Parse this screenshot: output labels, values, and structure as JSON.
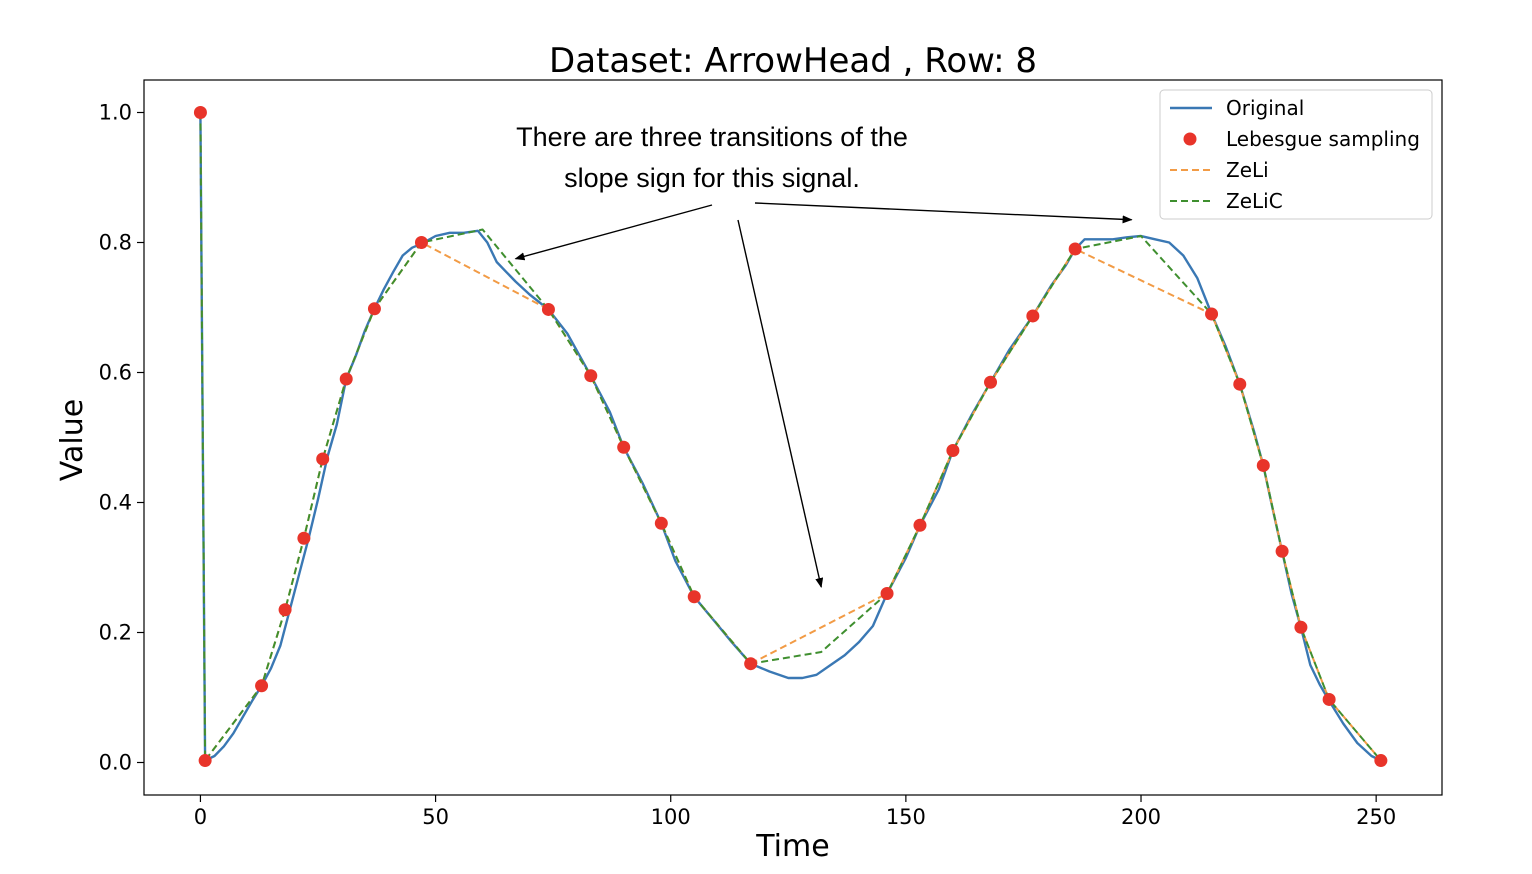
{
  "chart_data": {
    "type": "line",
    "title": "Dataset: ArrowHead , Row: 8",
    "xlabel": "Time",
    "ylabel": "Value",
    "xlim": [
      -12,
      264
    ],
    "ylim": [
      -0.05,
      1.05
    ],
    "xticks": [
      0,
      50,
      100,
      150,
      200,
      250
    ],
    "xtick_labels": [
      "0",
      "50",
      "100",
      "150",
      "200",
      "250"
    ],
    "yticks": [
      0.0,
      0.2,
      0.4,
      0.6,
      0.8,
      1.0
    ],
    "ytick_labels": [
      "0.0",
      "0.2",
      "0.4",
      "0.6",
      "0.8",
      "1.0"
    ],
    "grid": false,
    "legend_position": "top-right",
    "colors": {
      "original": "#3a78b4",
      "lebesgue": "#e8342a",
      "zeli": "#f29b45",
      "zelic": "#3f8f2f"
    },
    "series": [
      {
        "name": "Original",
        "style": "solid",
        "x": [
          0,
          1,
          3,
          5,
          7,
          9,
          11,
          13,
          15,
          17,
          19,
          21,
          23,
          25,
          27,
          29,
          31,
          33,
          35,
          37,
          39,
          41,
          43,
          45,
          47,
          50,
          53,
          56,
          59,
          61,
          63,
          65,
          67,
          70,
          74,
          78,
          83,
          87,
          90,
          94,
          98,
          101,
          105,
          109,
          113,
          117,
          121,
          125,
          128,
          131,
          134,
          137,
          140,
          143,
          146,
          150,
          153,
          157,
          160,
          164,
          168,
          172,
          177,
          181,
          184,
          186,
          188,
          191,
          194,
          197,
          200,
          203,
          206,
          209,
          212,
          215,
          218,
          221,
          224,
          226,
          228,
          230,
          232,
          234,
          236,
          238,
          240,
          243,
          246,
          249,
          251
        ],
        "y": [
          1.0,
          0.003,
          0.01,
          0.025,
          0.045,
          0.07,
          0.095,
          0.118,
          0.145,
          0.18,
          0.235,
          0.29,
          0.345,
          0.405,
          0.47,
          0.52,
          0.59,
          0.625,
          0.665,
          0.698,
          0.728,
          0.755,
          0.78,
          0.792,
          0.798,
          0.81,
          0.815,
          0.815,
          0.818,
          0.8,
          0.77,
          0.755,
          0.74,
          0.72,
          0.697,
          0.66,
          0.595,
          0.54,
          0.485,
          0.43,
          0.368,
          0.31,
          0.255,
          0.22,
          0.185,
          0.152,
          0.14,
          0.13,
          0.13,
          0.135,
          0.15,
          0.165,
          0.185,
          0.21,
          0.26,
          0.315,
          0.365,
          0.42,
          0.48,
          0.535,
          0.585,
          0.635,
          0.687,
          0.735,
          0.765,
          0.79,
          0.805,
          0.805,
          0.805,
          0.808,
          0.81,
          0.805,
          0.8,
          0.78,
          0.745,
          0.69,
          0.64,
          0.582,
          0.51,
          0.457,
          0.39,
          0.325,
          0.26,
          0.208,
          0.15,
          0.12,
          0.095,
          0.06,
          0.03,
          0.01,
          0.003
        ]
      },
      {
        "name": "Lebesgue sampling",
        "style": "markers",
        "x": [
          0,
          1,
          13,
          18,
          22,
          26,
          31,
          37,
          47,
          74,
          83,
          90,
          98,
          105,
          117,
          146,
          153,
          160,
          168,
          177,
          186,
          215,
          221,
          226,
          230,
          234,
          240,
          251
        ],
        "y": [
          1.0,
          0.003,
          0.118,
          0.235,
          0.345,
          0.467,
          0.59,
          0.698,
          0.8,
          0.697,
          0.595,
          0.485,
          0.368,
          0.255,
          0.152,
          0.26,
          0.365,
          0.48,
          0.585,
          0.687,
          0.79,
          0.69,
          0.582,
          0.457,
          0.325,
          0.208,
          0.097,
          0.003
        ]
      },
      {
        "name": "ZeLi",
        "style": "dashed",
        "x": [
          0,
          1,
          13,
          18,
          22,
          26,
          31,
          37,
          47,
          74,
          83,
          90,
          98,
          105,
          117,
          146,
          153,
          160,
          168,
          177,
          186,
          215,
          221,
          226,
          230,
          234,
          240,
          251
        ],
        "y": [
          1.0,
          0.003,
          0.118,
          0.235,
          0.345,
          0.467,
          0.59,
          0.698,
          0.8,
          0.697,
          0.595,
          0.485,
          0.368,
          0.255,
          0.152,
          0.26,
          0.365,
          0.48,
          0.585,
          0.687,
          0.79,
          0.69,
          0.582,
          0.457,
          0.325,
          0.208,
          0.097,
          0.003
        ]
      },
      {
        "name": "ZeLiC",
        "style": "dashed",
        "x": [
          0,
          1,
          13,
          18,
          22,
          26,
          31,
          37,
          47,
          60,
          74,
          83,
          90,
          98,
          105,
          117,
          132,
          146,
          153,
          160,
          168,
          177,
          186,
          200,
          215,
          221,
          226,
          230,
          234,
          240,
          251
        ],
        "y": [
          1.0,
          0.003,
          0.118,
          0.235,
          0.345,
          0.467,
          0.59,
          0.698,
          0.8,
          0.82,
          0.697,
          0.595,
          0.485,
          0.368,
          0.255,
          0.152,
          0.17,
          0.26,
          0.365,
          0.48,
          0.585,
          0.687,
          0.79,
          0.81,
          0.69,
          0.582,
          0.457,
          0.325,
          0.208,
          0.097,
          0.003
        ]
      }
    ],
    "annotation": {
      "lines": [
        "There are three transitions of the",
        "slope sign for this signal."
      ],
      "arrow_targets": [
        {
          "x": 67,
          "y": 0.775
        },
        {
          "x": 132,
          "y": 0.27
        },
        {
          "x": 198,
          "y": 0.835
        }
      ]
    }
  }
}
